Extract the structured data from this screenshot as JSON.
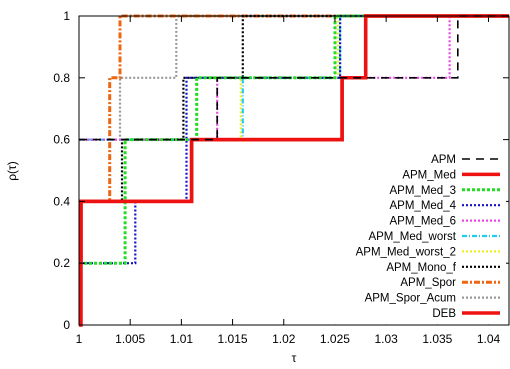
{
  "chart_data": {
    "type": "line",
    "step": true,
    "title": "",
    "xlabel": "τ",
    "ylabel": "ρ(τ)",
    "xlim": [
      1,
      1.042
    ],
    "ylim": [
      0,
      1
    ],
    "xticks": [
      1,
      1.005,
      1.01,
      1.015,
      1.02,
      1.025,
      1.03,
      1.035,
      1.04
    ],
    "xtick_labels": [
      "1",
      "1.005",
      "1.01",
      "1.015",
      "1.02",
      "1.025",
      "1.03",
      "1.035",
      "1.04"
    ],
    "yticks": [
      0,
      0.2,
      0.4,
      0.6,
      0.8,
      1
    ],
    "ytick_labels": [
      "0",
      "0.2",
      "0.4",
      "0.6",
      "0.8",
      "1"
    ],
    "grid": false,
    "legend_position": "bottom-right",
    "series": [
      {
        "name": "APM",
        "color": "#000000",
        "dash": "8,6",
        "width": 1.6,
        "points": [
          [
            1,
            0.6
          ],
          [
            1.0135,
            0.6
          ],
          [
            1.0135,
            0.8
          ],
          [
            1.037,
            0.8
          ],
          [
            1.037,
            1
          ],
          [
            1.042,
            1
          ]
        ]
      },
      {
        "name": "APM_Med",
        "color": "#ee1111",
        "dash": "",
        "width": 3.5,
        "points": [
          [
            1,
            0.2
          ],
          [
            1.0002,
            0.2
          ],
          [
            1.0002,
            0.4
          ],
          [
            1.011,
            0.4
          ],
          [
            1.011,
            0.6
          ],
          [
            1.0257,
            0.6
          ],
          [
            1.0257,
            0.8
          ],
          [
            1.028,
            0.8
          ],
          [
            1.028,
            1
          ],
          [
            1.042,
            1
          ]
        ]
      },
      {
        "name": "APM_Med_3",
        "color": "#22dd22",
        "dash": "3,2",
        "width": 3,
        "points": [
          [
            1,
            0.2
          ],
          [
            1.0045,
            0.2
          ],
          [
            1.0045,
            0.6
          ],
          [
            1.0115,
            0.6
          ],
          [
            1.0115,
            0.8
          ],
          [
            1.025,
            0.8
          ],
          [
            1.025,
            1
          ],
          [
            1.042,
            1
          ]
        ]
      },
      {
        "name": "APM_Med_4",
        "color": "#1111cc",
        "dash": "2,2",
        "width": 2.2,
        "points": [
          [
            1,
            0.2
          ],
          [
            1.0055,
            0.2
          ],
          [
            1.0055,
            0.4
          ],
          [
            1.0105,
            0.4
          ],
          [
            1.0105,
            0.8
          ],
          [
            1.0255,
            0.8
          ],
          [
            1.0255,
            1
          ],
          [
            1.042,
            1
          ]
        ]
      },
      {
        "name": "APM_Med_6",
        "color": "#ee44ee",
        "dash": "2,2",
        "width": 2.2,
        "points": [
          [
            1,
            0.6
          ],
          [
            1.0135,
            0.6
          ],
          [
            1.0135,
            0.8
          ],
          [
            1.0362,
            0.8
          ],
          [
            1.0362,
            1
          ],
          [
            1.042,
            1
          ]
        ]
      },
      {
        "name": "APM_Med_worst",
        "color": "#22ccee",
        "dash": "5,2,1,2",
        "width": 2.2,
        "points": [
          [
            1,
            0.6
          ],
          [
            1.016,
            0.6
          ],
          [
            1.016,
            0.8
          ],
          [
            1.0255,
            0.8
          ],
          [
            1.0255,
            1
          ],
          [
            1.042,
            1
          ]
        ]
      },
      {
        "name": "APM_Med_worst_2",
        "color": "#eeee22",
        "dash": "2,2",
        "width": 2.2,
        "points": [
          [
            1,
            0.6
          ],
          [
            1.0158,
            0.6
          ],
          [
            1.0158,
            0.8
          ],
          [
            1.0253,
            0.8
          ],
          [
            1.0253,
            1
          ],
          [
            1.042,
            1
          ]
        ]
      },
      {
        "name": "APM_Mono_f",
        "color": "#000000",
        "dash": "2,2",
        "width": 2.2,
        "points": [
          [
            1,
            0.4
          ],
          [
            1.0042,
            0.4
          ],
          [
            1.0042,
            0.6
          ],
          [
            1.0102,
            0.6
          ],
          [
            1.0102,
            0.8
          ],
          [
            1.016,
            0.8
          ],
          [
            1.016,
            1
          ],
          [
            1.042,
            1
          ]
        ]
      },
      {
        "name": "APM_Spor",
        "color": "#ee6611",
        "dash": "6,2,2,2",
        "width": 3,
        "points": [
          [
            1,
            0.4
          ],
          [
            1.003,
            0.4
          ],
          [
            1.003,
            0.8
          ],
          [
            1.004,
            0.8
          ],
          [
            1.004,
            1
          ],
          [
            1.042,
            1
          ]
        ]
      },
      {
        "name": "APM_Spor_Acum",
        "color": "#999999",
        "dash": "2,2",
        "width": 2.2,
        "points": [
          [
            1,
            0.6
          ],
          [
            1.004,
            0.6
          ],
          [
            1.004,
            0.8
          ],
          [
            1.0095,
            0.8
          ],
          [
            1.0095,
            1
          ],
          [
            1.042,
            1
          ]
        ]
      },
      {
        "name": "DEB",
        "color": "#ee1111",
        "dash": "",
        "width": 3.5,
        "points": [
          [
            1,
            0
          ],
          [
            1.0002,
            0
          ],
          [
            1.0002,
            0.4
          ],
          [
            1.011,
            0.4
          ],
          [
            1.011,
            0.6
          ],
          [
            1.0257,
            0.6
          ],
          [
            1.0257,
            0.8
          ],
          [
            1.028,
            0.8
          ],
          [
            1.028,
            1
          ],
          [
            1.042,
            1
          ]
        ]
      }
    ]
  }
}
